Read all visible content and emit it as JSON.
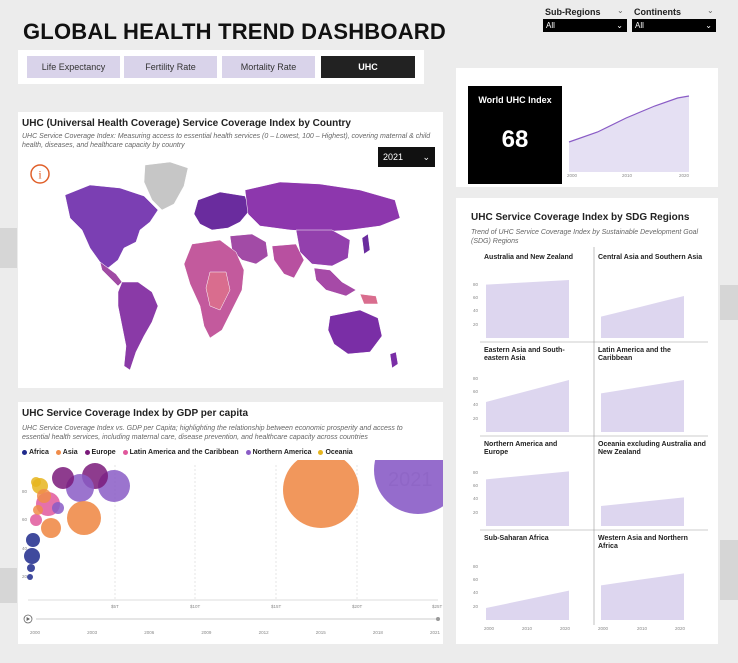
{
  "header": {
    "title": "GLOBAL HEALTH TREND DASHBOARD"
  },
  "tabs": [
    {
      "label": "Life Expectancy",
      "active": false
    },
    {
      "label": "Fertility Rate",
      "active": false
    },
    {
      "label": "Mortality Rate",
      "active": false
    },
    {
      "label": "UHC",
      "active": true
    }
  ],
  "filters": {
    "subregions": {
      "label": "Sub-Regions",
      "value": "All"
    },
    "continents": {
      "label": "Continents",
      "value": "All"
    }
  },
  "map_panel": {
    "title": "UHC (Universal Health Coverage) Service Coverage Index by Country",
    "subtitle": "UHC Service Coverage Index: Measuring access to essential health services (0 – Lowest, 100 – Highest), covering maternal & child health, diseases, and healthcare capacity by country",
    "year": "2021",
    "info_icon": "info-circle-icon"
  },
  "kpi": {
    "label": "World UHC Index",
    "value": "68",
    "x_ticks": [
      "2000",
      "2010",
      "2020"
    ]
  },
  "sdg_panel": {
    "title": "UHC Service Coverage Index by SDG Regions",
    "subtitle": "Trend of UHC Service Coverage Index by Sustainable Development Goal (SDG) Regions",
    "y_ticks": [
      "80",
      "60",
      "40",
      "20"
    ],
    "x_ticks": [
      "2000",
      "2010",
      "2020"
    ]
  },
  "bubble_panel": {
    "title": "UHC Service Coverage Index by GDP per capita",
    "subtitle": "UHC Service Coverage Index vs. GDP per Capita; highlighting the relationship between economic prosperity and access to essential health services, including maternal care, disease prevention, and healthcare capacity across countries",
    "year_watermark": "2021",
    "y_ticks": [
      "80",
      "60",
      "40",
      "20"
    ],
    "x_ticks": [
      "$5T",
      "$10T",
      "$15T",
      "$20T",
      "$25T"
    ],
    "play_axis_ticks": [
      "2000",
      "2003",
      "2006",
      "2009",
      "2012",
      "2015",
      "2018",
      "2021"
    ]
  },
  "colors": {
    "accent": "#8a5cc6",
    "area_fill": "#ddd6ef",
    "africa": "#1f2a8c",
    "asia": "#f08c4a",
    "europe": "#7a1a7a",
    "latam": "#e0589c",
    "north_america": "#8a5cc6",
    "oceania": "#e6b51e"
  },
  "chart_data": [
    {
      "type": "area",
      "title": "World UHC Index",
      "x": [
        2000,
        2005,
        2010,
        2015,
        2019,
        2021
      ],
      "values": [
        45,
        50,
        57,
        63,
        67,
        68
      ]
    },
    {
      "type": "area",
      "title": "UHC Service Coverage Index by SDG Regions",
      "x": [
        2000,
        2021
      ],
      "ylim": [
        0,
        90
      ],
      "series": [
        {
          "name": "Australia and New Zealand",
          "values": [
            80,
            87
          ]
        },
        {
          "name": "Central Asia and Southern Asia",
          "values": [
            32,
            63
          ]
        },
        {
          "name": "Eastern Asia and South-eastern Asia",
          "values": [
            45,
            78
          ]
        },
        {
          "name": "Latin America and the Caribbean",
          "values": [
            58,
            78
          ]
        },
        {
          "name": "Northern America and Europe",
          "values": [
            70,
            82
          ]
        },
        {
          "name": "Oceania excluding Australia and New Zealand",
          "values": [
            30,
            43
          ]
        },
        {
          "name": "Sub-Saharan Africa",
          "values": [
            18,
            44
          ]
        },
        {
          "name": "Western Asia and Northern Africa",
          "values": [
            52,
            70
          ]
        }
      ]
    },
    {
      "type": "scatter",
      "title": "UHC Service Coverage Index by GDP per capita",
      "legend": [
        "Africa",
        "Asia",
        "Europe",
        "Latin America and the Caribbean",
        "Northern America",
        "Oceania"
      ],
      "year": "2021"
    }
  ]
}
